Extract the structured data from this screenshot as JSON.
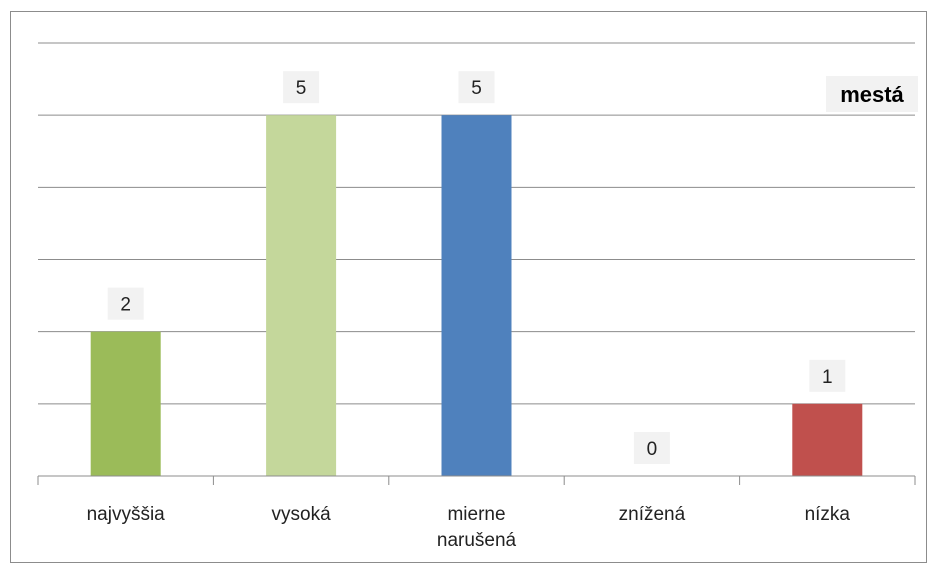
{
  "chart_data": {
    "type": "bar",
    "categories": [
      "najvyššia",
      "vysoká",
      "mierne narušená",
      "znížená",
      "nízka"
    ],
    "category_lines": [
      [
        "najvyššia"
      ],
      [
        "vysoká"
      ],
      [
        "mierne",
        "narušená"
      ],
      [
        "znížená"
      ],
      [
        "nízka"
      ]
    ],
    "series": [
      {
        "name": "mestá",
        "values": [
          2,
          5,
          5,
          0,
          1
        ]
      }
    ],
    "colors": [
      "#9bbb59",
      "#c4d79b",
      "#4f81bd",
      "#8064a2",
      "#c0504d"
    ],
    "ylim": [
      0,
      6
    ],
    "grid": true,
    "legend": "top-right",
    "data_labels": true
  }
}
